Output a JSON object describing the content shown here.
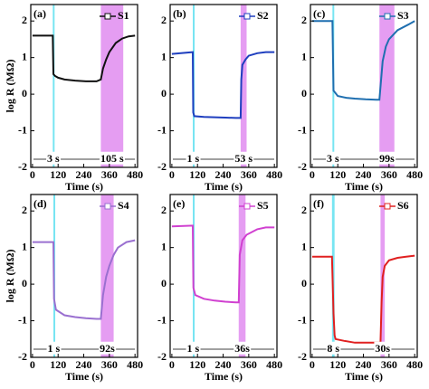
{
  "chart_data": [
    {
      "type": "line",
      "label": "(a)",
      "ylabel": "log R (MΩ)",
      "xlabel": "Time (s)",
      "xlim": [
        -8,
        492
      ],
      "ylim": [
        -2,
        2.45
      ],
      "xticks": [
        0,
        120,
        240,
        360,
        480
      ],
      "yticks": [
        -2,
        -1,
        0,
        1,
        2
      ],
      "x": [
        0,
        95,
        98,
        105,
        120,
        150,
        200,
        250,
        300,
        320,
        330,
        345,
        360,
        390,
        420,
        450,
        480
      ],
      "series": [
        {
          "name": "S1",
          "color": "#111111",
          "values": [
            1.6,
            1.6,
            0.55,
            0.5,
            0.45,
            0.4,
            0.37,
            0.35,
            0.35,
            0.4,
            0.7,
            0.95,
            1.15,
            1.4,
            1.52,
            1.58,
            1.6
          ]
        }
      ],
      "bands": [
        {
          "range": [
            95,
            100
          ],
          "color": "#5fe0f0",
          "label": "3 s"
        },
        {
          "range": [
            320,
            425
          ],
          "color": "#e08cf0",
          "label": "105 s"
        }
      ]
    },
    {
      "type": "line",
      "label": "(b)",
      "xlabel": "Time (s)",
      "xlim": [
        -8,
        492
      ],
      "ylim": [
        -2,
        2.45
      ],
      "xticks": [
        0,
        120,
        240,
        360,
        480
      ],
      "yticks": [
        -2,
        -1,
        0,
        1,
        2
      ],
      "x": [
        0,
        98,
        100,
        105,
        150,
        200,
        250,
        300,
        322,
        325,
        330,
        345,
        360,
        400,
        440,
        480
      ],
      "series": [
        {
          "name": "S2",
          "color": "#1f3fbf",
          "values": [
            1.1,
            1.15,
            -0.5,
            -0.6,
            -0.62,
            -0.63,
            -0.64,
            -0.65,
            -0.65,
            0.4,
            0.8,
            0.95,
            1.05,
            1.12,
            1.15,
            1.15
          ]
        }
      ],
      "bands": [
        {
          "range": [
            98,
            101
          ],
          "color": "#5fe0f0",
          "label": "1 s"
        },
        {
          "range": [
            322,
            350
          ],
          "color": "#e08cf0",
          "label": "53 s"
        }
      ]
    },
    {
      "type": "line",
      "label": "(c)",
      "xlabel": "Time (s)",
      "xlim": [
        -8,
        492
      ],
      "ylim": [
        -2,
        2.45
      ],
      "xticks": [
        0,
        120,
        240,
        360,
        480
      ],
      "yticks": [
        -2,
        -1,
        0,
        1,
        2
      ],
      "x": [
        0,
        95,
        100,
        120,
        160,
        200,
        250,
        300,
        315,
        330,
        345,
        360,
        400,
        450,
        480
      ],
      "series": [
        {
          "name": "S3",
          "color": "#1f6fb0",
          "values": [
            2.0,
            2.0,
            0.1,
            -0.05,
            -0.1,
            -0.12,
            -0.14,
            -0.15,
            -0.15,
            0.9,
            1.3,
            1.5,
            1.75,
            1.9,
            2.0
          ]
        }
      ],
      "bands": [
        {
          "range": [
            95,
            100
          ],
          "color": "#5fe0f0",
          "label": "3 s"
        },
        {
          "range": [
            315,
            385
          ],
          "color": "#e08cf0",
          "label": "99s"
        }
      ]
    },
    {
      "type": "line",
      "label": "(d)",
      "ylabel": "log R (MΩ)",
      "xlabel": "Time (s)",
      "xlim": [
        -8,
        492
      ],
      "ylim": [
        -2,
        2.45
      ],
      "xticks": [
        0,
        120,
        240,
        360,
        480
      ],
      "yticks": [
        -2,
        -1,
        0,
        1,
        2
      ],
      "x": [
        0,
        98,
        101,
        110,
        150,
        200,
        250,
        300,
        320,
        330,
        345,
        360,
        380,
        400,
        440,
        480
      ],
      "series": [
        {
          "name": "S4",
          "color": "#9a70d0",
          "values": [
            1.15,
            1.15,
            -0.4,
            -0.7,
            -0.85,
            -0.9,
            -0.93,
            -0.95,
            -0.95,
            -0.3,
            0.2,
            0.5,
            0.8,
            1.0,
            1.15,
            1.2
          ]
        }
      ],
      "bands": [
        {
          "range": [
            98,
            101
          ],
          "color": "#5fe0f0",
          "label": "1 s"
        },
        {
          "range": [
            320,
            380
          ],
          "color": "#e08cf0",
          "label": "92s"
        }
      ]
    },
    {
      "type": "line",
      "label": "(e)",
      "xlabel": "Time (s)",
      "xlim": [
        -8,
        492
      ],
      "ylim": [
        -2,
        2.45
      ],
      "xticks": [
        0,
        120,
        240,
        360,
        480
      ],
      "yticks": [
        -2,
        -1,
        0,
        1,
        2
      ],
      "x": [
        0,
        98,
        101,
        110,
        150,
        200,
        250,
        300,
        313,
        318,
        330,
        350,
        400,
        440,
        480
      ],
      "series": [
        {
          "name": "S5",
          "color": "#d040d0",
          "values": [
            1.58,
            1.6,
            -0.1,
            -0.3,
            -0.4,
            -0.45,
            -0.48,
            -0.5,
            -0.5,
            0.8,
            1.2,
            1.35,
            1.5,
            1.55,
            1.55
          ]
        }
      ],
      "bands": [
        {
          "range": [
            98,
            101
          ],
          "color": "#5fe0f0",
          "label": "1 s"
        },
        {
          "range": [
            313,
            345
          ],
          "color": "#e08cf0",
          "label": "36s"
        }
      ]
    },
    {
      "type": "line",
      "label": "(f)",
      "xlabel": "Time (s)",
      "xlim": [
        -8,
        492
      ],
      "ylim": [
        -2,
        2.45
      ],
      "xticks": [
        0,
        120,
        240,
        360,
        480
      ],
      "yticks": [
        -2,
        -1,
        0,
        1,
        2
      ],
      "x": [
        0,
        93,
        100,
        105,
        110,
        150,
        200,
        250,
        320,
        325,
        330,
        340,
        360,
        400,
        440,
        480
      ],
      "series": [
        {
          "name": "S6",
          "color": "#e02020",
          "values": [
            0.75,
            0.75,
            -0.8,
            -1.4,
            -1.5,
            -1.55,
            -1.6,
            -1.6,
            -1.6,
            -0.5,
            0.2,
            0.5,
            0.65,
            0.72,
            0.75,
            0.78
          ]
        }
      ],
      "bands": [
        {
          "range": [
            93,
            105
          ],
          "color": "#5fe0f0",
          "label": "8 s"
        },
        {
          "range": [
            320,
            340
          ],
          "color": "#e08cf0",
          "label": "30s"
        }
      ]
    }
  ]
}
